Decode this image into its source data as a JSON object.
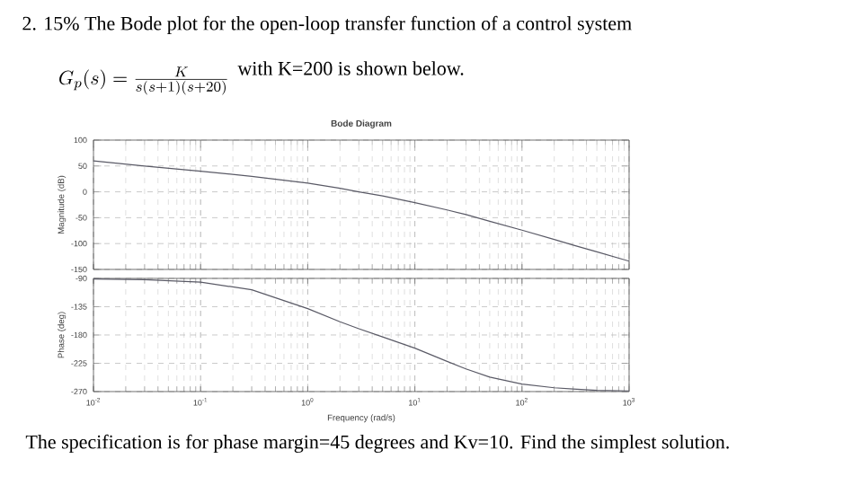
{
  "chart_data": [
    {
      "type": "line",
      "title": "Bode Diagram",
      "ylabel": "Magnitude (dB)",
      "log": "x",
      "grid": true,
      "tick_labels": "y",
      "annotations": [
        "2. 15% The Bode plot for the open-loop transfer function of a control system",
        "G_p(s)=\\frac{K}{s(s+1)(s+20)}",
        "with K=200 is shown below."
      ],
      "x": [
        0.01,
        0.03,
        0.1,
        0.3,
        1,
        2,
        3,
        5,
        10,
        20,
        30,
        50,
        100,
        200,
        300,
        500,
        1000
      ],
      "xlim": [
        0.01,
        1000
      ],
      "xticks": [
        {
          "value": 0.01,
          "label": null
        },
        {
          "value": 0.1,
          "label": null
        },
        {
          "value": 1,
          "label": null
        },
        {
          "value": 10,
          "label": null
        },
        {
          "value": 100,
          "label": null
        },
        {
          "value": 1000,
          "label": null
        }
      ],
      "ylim": [
        -150,
        100
      ],
      "yticks": [
        -150,
        -100,
        -50,
        0,
        50,
        100
      ],
      "series": [
        {
          "color": "#5a5a66",
          "values": [
            60,
            50,
            40,
            30,
            17,
            7,
            0,
            -8,
            -21,
            -35,
            -44,
            -57,
            -74,
            -92,
            -103,
            -116,
            -134
          ]
        }
      ]
    },
    {
      "type": "line",
      "xlabel": "Frequency  (rad/s)",
      "ylabel": "Phase (deg)",
      "log": "x",
      "grid": true,
      "annotations": [
        "The specification is for phase margin=45 degrees and Kv=10. Find the simplest solution."
      ],
      "x": [
        0.01,
        0.03,
        0.1,
        0.3,
        1,
        2,
        3,
        5,
        10,
        20,
        30,
        50,
        100,
        200,
        300,
        500,
        1000
      ],
      "xlim": [
        0.01,
        1000
      ],
      "xticks": [
        {
          "value": 0.01,
          "label": "10$^{-2}$"
        },
        {
          "value": 0.1,
          "label": "10$^{-1}$"
        },
        {
          "value": 1,
          "label": "10$^{0}$"
        },
        {
          "value": 10,
          "label": "10$^{1}$"
        },
        {
          "value": 100,
          "label": "10$^{2}$"
        },
        {
          "value": 1000,
          "label": "10$^{3}$"
        }
      ],
      "ylim": [
        -270,
        -90
      ],
      "yticks": [
        -270,
        -225,
        -180,
        -135,
        -90
      ],
      "series": [
        {
          "color": "#5a5a66",
          "values": [
            -91,
            -92,
            -96,
            -108,
            -138,
            -159,
            -170,
            -183,
            -201,
            -222,
            -234,
            -247,
            -258,
            -264,
            -266,
            -268,
            -269
          ]
        }
      ]
    }
  ]
}
